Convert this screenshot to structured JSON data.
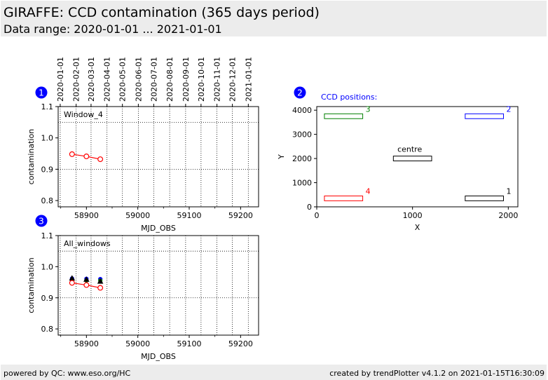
{
  "header": {
    "title": "GIRAFFE: CCD contamination (365 days period)",
    "subtitle": "Data range: 2020-01-01 ... 2021-01-01"
  },
  "footer": {
    "left": "powered by QC: www.eso.org/HC",
    "right": "created by trendPlotter v4.1.2 on 2021-01-15T16:30:09"
  },
  "colors": {
    "red": "#ff0000",
    "blue": "#0000ff",
    "green": "#008000",
    "black": "#000000"
  },
  "chart_data": [
    {
      "id": "1",
      "type": "line",
      "label": "Window_4",
      "xlabel": "MJD_OBS",
      "ylabel": "contamination",
      "xlim": [
        58845,
        59235
      ],
      "ylim": [
        0.78,
        1.1
      ],
      "xticks": [
        58900,
        59000,
        59100,
        59200
      ],
      "yticks": [
        0.8,
        0.9,
        1.0,
        1.1
      ],
      "top_axis_dates": [
        "2020-01-01",
        "2020-02-01",
        "2020-03-01",
        "2020-04-01",
        "2020-05-01",
        "2020-06-01",
        "2020-07-01",
        "2020-08-01",
        "2020-09-01",
        "2020-10-01",
        "2020-11-01",
        "2020-12-01",
        "2021-01-01"
      ],
      "top_axis_mjd": [
        58849,
        58880,
        58909,
        58940,
        58970,
        59001,
        59031,
        59062,
        59093,
        59123,
        59154,
        59184,
        59215
      ],
      "hlines": [
        1.05,
        0.9
      ],
      "series": [
        {
          "color": "#ff0000",
          "marker": "circle",
          "x": [
            58872,
            58900,
            58927
          ],
          "y": [
            0.948,
            0.941,
            0.932
          ]
        }
      ]
    },
    {
      "id": "2",
      "type": "diagram",
      "caption": "CCD positions:",
      "xlabel": "X",
      "ylabel": "Y",
      "xlim": [
        0,
        2100
      ],
      "ylim": [
        0,
        4150
      ],
      "xticks": [
        0,
        1000,
        2000
      ],
      "yticks": [
        0,
        1000,
        2000,
        3000,
        4000
      ],
      "windows": [
        {
          "label": "1",
          "color": "#000000",
          "x0": 1550,
          "x1": 1950,
          "y0": 250,
          "y1": 450
        },
        {
          "label": "2",
          "color": "#0000ff",
          "x0": 1550,
          "x1": 1950,
          "y0": 3650,
          "y1": 3850
        },
        {
          "label": "3",
          "color": "#008000",
          "x0": 80,
          "x1": 480,
          "y0": 3650,
          "y1": 3850
        },
        {
          "label": "4",
          "color": "#ff0000",
          "x0": 80,
          "x1": 480,
          "y0": 250,
          "y1": 450
        },
        {
          "label": "centre",
          "color": "#000000",
          "x0": 800,
          "x1": 1200,
          "y0": 1900,
          "y1": 2100
        }
      ]
    },
    {
      "id": "3",
      "type": "scatter",
      "label": "All_windows",
      "xlabel": "MJD_OBS",
      "ylabel": "contamination",
      "xlim": [
        58845,
        59235
      ],
      "ylim": [
        0.78,
        1.1
      ],
      "xticks": [
        58900,
        59000,
        59100,
        59200
      ],
      "yticks": [
        0.8,
        0.9,
        1.0,
        1.1
      ],
      "hlines": [
        1.05,
        0.9
      ],
      "series": [
        {
          "color": "#0000ff",
          "marker": "circle",
          "x": [
            58872,
            58900,
            58927
          ],
          "y": [
            0.962,
            0.961,
            0.96
          ]
        },
        {
          "color": "#008000",
          "marker": "circle",
          "x": [
            58872,
            58900,
            58927
          ],
          "y": [
            0.958,
            0.956,
            0.955
          ]
        },
        {
          "color": "#000000",
          "marker": "triangle",
          "x": [
            58872,
            58900,
            58927
          ],
          "y": [
            0.962,
            0.958,
            0.952
          ]
        },
        {
          "color": "#ff0000",
          "marker": "circle",
          "line": true,
          "x": [
            58872,
            58900,
            58927
          ],
          "y": [
            0.948,
            0.941,
            0.932
          ]
        }
      ]
    }
  ]
}
